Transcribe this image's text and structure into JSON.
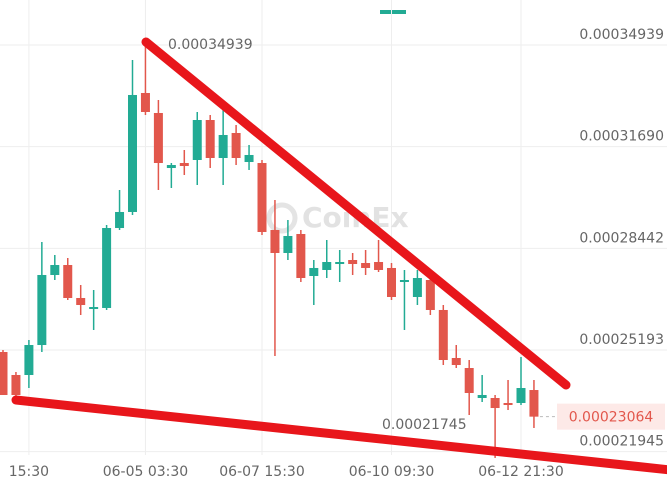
{
  "chart_data": {
    "type": "candlestick",
    "watermark": "CoinEx",
    "up_color": "#22ab94",
    "down_color": "#e2574c",
    "open": [
      0.0002513,
      0.00024395,
      0.00024395,
      0.00025353,
      0.0002759,
      0.00027909,
      0.00026855,
      0.00026504,
      0.00026536,
      0.00029091,
      0.00029603,
      0.00033405,
      0.00032766,
      0.00031008,
      0.00031168,
      0.00031264,
      0.00032542,
      0.00031328,
      0.00032127,
      0.000312,
      0.00031168,
      0.00029028,
      0.00028293,
      0.000289,
      0.00027558,
      0.0002775,
      0.00027941,
      0.00028069,
      0.00027973,
      0.00028005,
      0.00027814,
      0.00027366,
      0.00026887,
      0.0002743,
      0.00026472,
      0.00024938,
      0.00024618,
      0.0002366,
      0.0002366,
      0.000235,
      0.000235,
      0.00023915
    ],
    "high": [
      0.00025194,
      0.00024491,
      0.00025513,
      0.00028644,
      0.00028229,
      0.00028133,
      0.0002727,
      0.00027111,
      0.00029187,
      0.00030306,
      0.00034459,
      0.00034939,
      0.00033181,
      0.00031168,
      0.00031584,
      0.00032798,
      0.00032702,
      0.00032861,
      0.00032382,
      0.00031744,
      0.00031264,
      0.00029986,
      0.00029347,
      0.00029028,
      0.00028069,
      0.00028708,
      0.00028389,
      0.00028293,
      0.00028389,
      0.00028708,
      0.00027973,
      0.0002775,
      0.0002775,
      0.00027558,
      0.00026631,
      0.00025353,
      0.00024874,
      0.00024395,
      0.00023756,
      0.00024235,
      0.0002497,
      0.00024235
    ],
    "low": [
      0.00023756,
      0.0002366,
      0.00023979,
      0.0002513,
      0.0002743,
      0.00026791,
      0.00026312,
      0.00025833,
      0.00026472,
      0.00029028,
      0.00029507,
      0.00032702,
      0.00030306,
      0.00030369,
      0.00030785,
      0.00030465,
      0.00031008,
      0.00030465,
      0.00031104,
      0.00030945,
      0.00028868,
      0.00025002,
      0.00028069,
      0.00027366,
      0.00026631,
      0.00027494,
      0.00027366,
      0.0002759,
      0.0002759,
      0.00027686,
      0.00026791,
      0.00025833,
      0.00026631,
      0.00026312,
      0.00024714,
      0.00024618,
      0.00023117,
      0.00023532,
      0.00021745,
      0.00023276,
      0.00023436,
      0.00022702
    ],
    "close": [
      0.00023756,
      0.00023756,
      0.00025353,
      0.0002759,
      0.00027909,
      0.00026855,
      0.00026631,
      0.00026567,
      0.00029091,
      0.00029603,
      0.00033341,
      0.00032798,
      0.00031168,
      0.00031104,
      0.00031072,
      0.00032542,
      0.00031328,
      0.00032063,
      0.00031328,
      0.00031424,
      0.00028964,
      0.00028293,
      0.00028836,
      0.00027494,
      0.00027814,
      0.00028005,
      0.00028005,
      0.00027941,
      0.00027814,
      0.0002775,
      0.00026887,
      0.0002743,
      0.00027494,
      0.00026472,
      0.00024874,
      0.00024714,
      0.0002382,
      0.00023756,
      0.0002334,
      0.00023436,
      0.00023979,
      0.00023064
    ],
    "ylim": [
      0.00020433,
      0.00036376
    ],
    "yticks": [
      0.00034939,
      {
        "value": 0.0003169,
        "label": "0.00031690"
      },
      0.00028442,
      0.00025193,
      0.00021945
    ],
    "xticks": [
      {
        "value": 2,
        "label": "15:30"
      },
      {
        "value": 11,
        "label": "06-05 03:30"
      },
      {
        "value": 20,
        "label": "06-07 15:30"
      },
      {
        "value": 30,
        "label": "06-10 09:30"
      },
      {
        "value": 40,
        "label": "06-12 21:30"
      }
    ],
    "annotations": {
      "max": 0.00034939,
      "min": 0.00021745,
      "last": 0.00023064
    },
    "grid": true
  }
}
